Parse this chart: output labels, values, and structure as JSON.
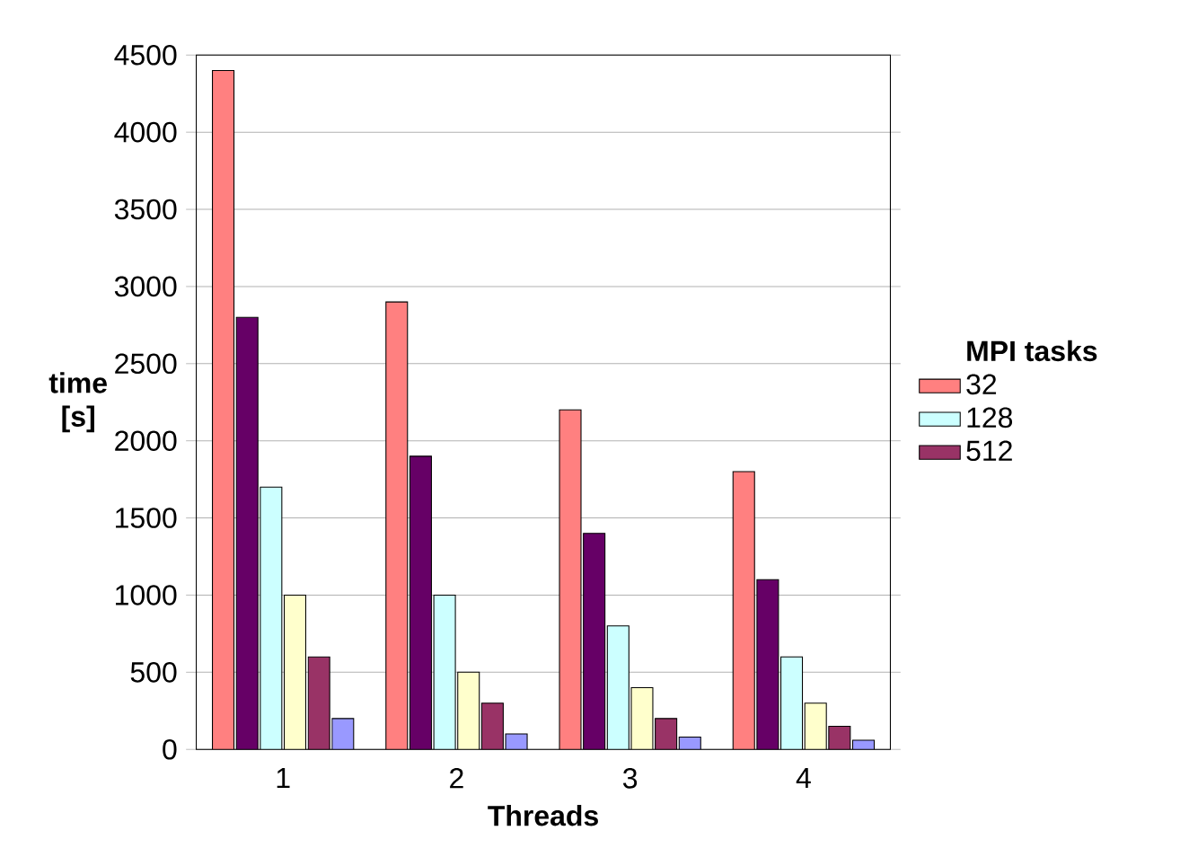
{
  "chart_data": {
    "type": "bar",
    "xlabel": "Threads",
    "ylabel": "time [s]",
    "legend_title": "MPI tasks",
    "categories": [
      "1",
      "2",
      "3",
      "4"
    ],
    "series": [
      {
        "name": "32",
        "color": "#ff8080",
        "values": [
          4400,
          2900,
          2200,
          1800
        ]
      },
      {
        "color": "#660066",
        "values": [
          2800,
          1900,
          1400,
          1100
        ]
      },
      {
        "name": "128",
        "color": "#ccffff",
        "values": [
          1700,
          1000,
          800,
          600
        ]
      },
      {
        "color": "#ffffcc",
        "values": [
          1000,
          500,
          400,
          300
        ]
      },
      {
        "name": "512",
        "color": "#993366",
        "values": [
          600,
          300,
          200,
          150
        ]
      },
      {
        "color": "#9999ff",
        "values": [
          200,
          100,
          80,
          60
        ]
      }
    ],
    "ylim": [
      0,
      4500
    ],
    "yticks": [
      0,
      500,
      1000,
      1500,
      2000,
      2500,
      3000,
      3500,
      4000,
      4500
    ],
    "grid": "y",
    "legend": "right"
  }
}
